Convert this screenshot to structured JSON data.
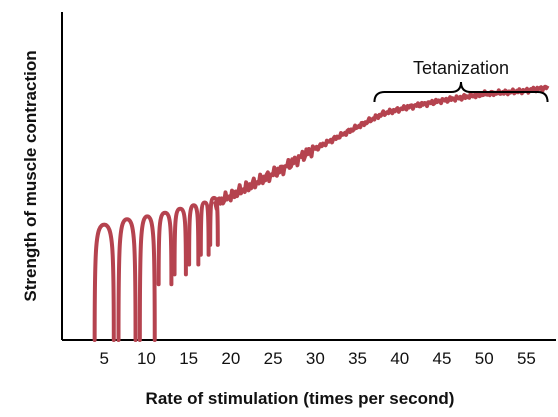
{
  "chart_data": {
    "type": "line",
    "title": "",
    "xlabel": "Rate of stimulation (times per second)",
    "ylabel": "Strength of muscle contraction",
    "x_ticks": [
      5,
      10,
      15,
      20,
      25,
      30,
      35,
      40,
      45,
      50,
      55
    ],
    "xlim": [
      0,
      58.5
    ],
    "ylim": [
      0,
      1
    ],
    "grid": false,
    "legend": "none",
    "line_color": "#b5434f",
    "series": [
      {
        "points": [
          [
            4.7,
            0.33
          ],
          [
            8.0,
            0.35
          ],
          [
            11.0,
            0.36
          ],
          [
            14.0,
            0.38
          ],
          [
            17.0,
            0.4
          ],
          [
            20.0,
            0.44
          ],
          [
            23.0,
            0.48
          ],
          [
            26.0,
            0.52
          ],
          [
            29.0,
            0.57
          ],
          [
            32.0,
            0.61
          ],
          [
            35.0,
            0.65
          ],
          [
            38.0,
            0.69
          ],
          [
            41.0,
            0.71
          ],
          [
            45.0,
            0.73
          ],
          [
            50.0,
            0.75
          ],
          [
            55.0,
            0.76
          ],
          [
            57.5,
            0.77
          ]
        ]
      }
    ],
    "twitch_peaks_x": [
      5,
      7.7,
      10.1,
      12.2,
      14.0,
      15.6,
      16.9,
      18.0
    ],
    "annotations": [
      {
        "text": "Tetanization",
        "x_range": [
          37,
          57.5
        ]
      }
    ]
  }
}
